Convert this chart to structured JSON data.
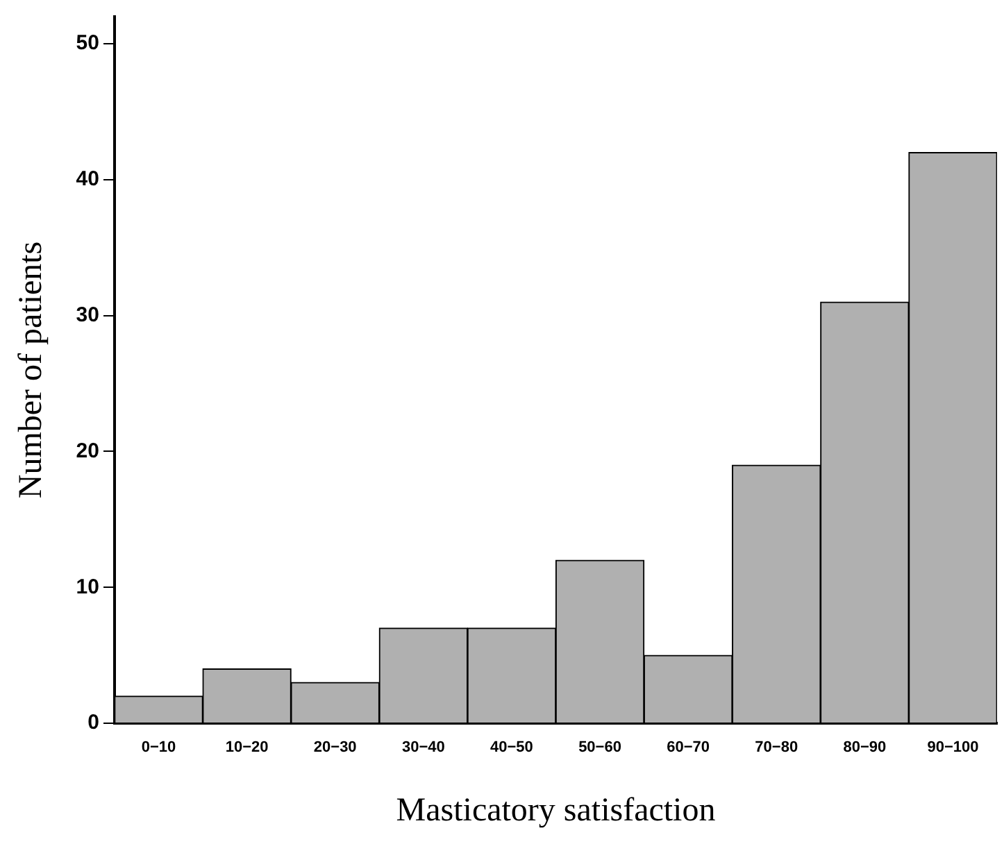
{
  "chart_data": {
    "type": "bar",
    "xlabel": "Masticatory satisfaction",
    "ylabel": "Number of patients",
    "categories": [
      "0−10",
      "10−20",
      "20−30",
      "30−40",
      "40−50",
      "50−60",
      "60−70",
      "70−80",
      "80−90",
      "90−100"
    ],
    "values": [
      2,
      4,
      3,
      7,
      7,
      12,
      5,
      19,
      31,
      42
    ],
    "color": "#b0b0b0",
    "ylim": [
      0,
      52
    ],
    "yticks": [
      0,
      10,
      20,
      30,
      40,
      50
    ],
    "grid": false,
    "legend": false
  }
}
